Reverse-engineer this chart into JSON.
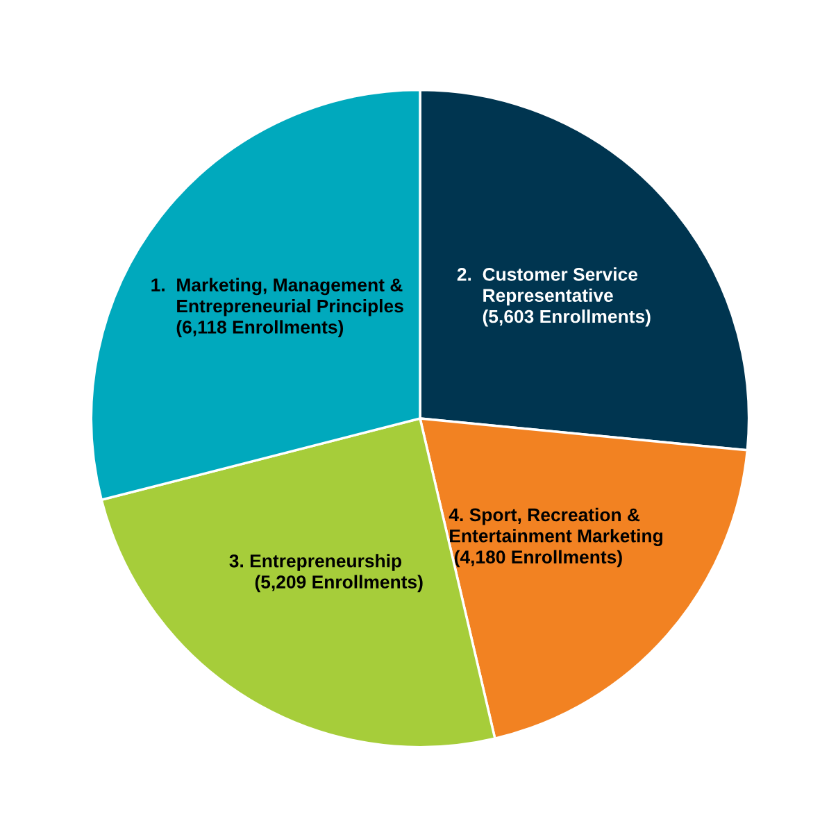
{
  "chart_data": {
    "type": "pie",
    "categories": [
      "2.  Customer Service\n     Representative",
      "4. Sport, Recreation &\nEntertainment Marketing",
      "3. Entrepreneurship",
      "1.  Marketing, Management &\n     Entrepreneurial Principles"
    ],
    "values": [
      5603,
      4180,
      5209,
      6118
    ],
    "value_labels": [
      "     (5,603 Enrollments)",
      " (4,180 Enrollments)",
      "     (5,209 Enrollments)",
      "     (6,118 Enrollments)"
    ],
    "colors": [
      "#003550",
      "#f28222",
      "#a6cd3a",
      "#00a9bd"
    ],
    "legend": false
  }
}
